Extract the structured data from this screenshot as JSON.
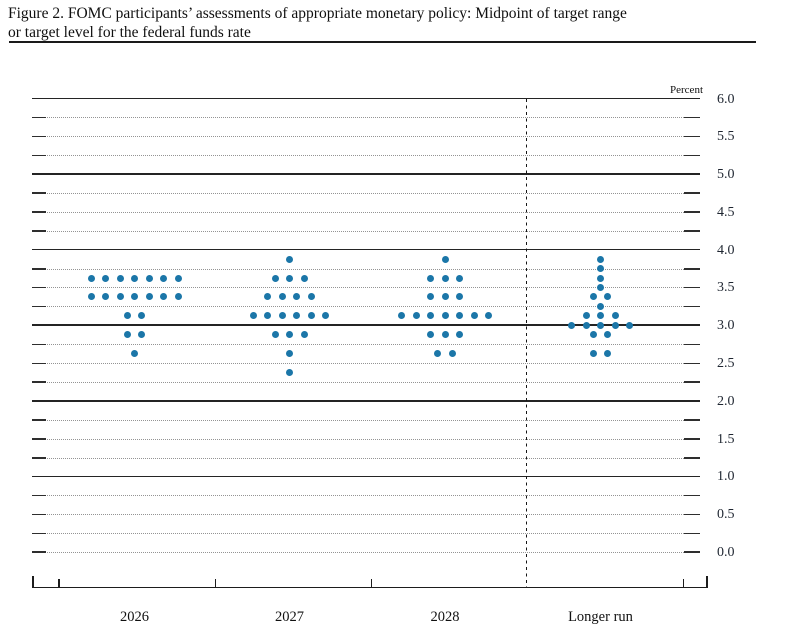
{
  "figure": {
    "title_line1": "Figure 2. FOMC participants’ assessments of appropriate monetary policy: Midpoint of target range",
    "title_line2": "or target level for the federal funds rate"
  },
  "chart_data": {
    "type": "scatter",
    "subtype": "fomc-dot-plot",
    "title": "Figure 2. FOMC participants’ assessments of appropriate monetary policy: Midpoint of target range or target level for the federal funds rate",
    "ylabel": "Percent",
    "ylim": [
      0.0,
      6.0
    ],
    "ytick_label_step": 0.5,
    "gridline_step": 0.25,
    "solid_gridlines": [
      1.0,
      2.0,
      3.0,
      4.0,
      5.0,
      6.0
    ],
    "grid": true,
    "legend_position": "none",
    "categories": [
      "2026",
      "2027",
      "2028",
      "Longer run"
    ],
    "separator_before_category": "Longer run",
    "dot_color": "#1b76a8",
    "participants_per_column": 19,
    "columns": [
      {
        "label": "2026",
        "dots": [
          {
            "rate": 3.625,
            "count": 7
          },
          {
            "rate": 3.375,
            "count": 7
          },
          {
            "rate": 3.125,
            "count": 2
          },
          {
            "rate": 2.875,
            "count": 2
          },
          {
            "rate": 2.625,
            "count": 1
          }
        ]
      },
      {
        "label": "2027",
        "dots": [
          {
            "rate": 3.875,
            "count": 1
          },
          {
            "rate": 3.625,
            "count": 3
          },
          {
            "rate": 3.375,
            "count": 4
          },
          {
            "rate": 3.125,
            "count": 6
          },
          {
            "rate": 2.875,
            "count": 3
          },
          {
            "rate": 2.625,
            "count": 1
          },
          {
            "rate": 2.375,
            "count": 1
          }
        ]
      },
      {
        "label": "2028",
        "dots": [
          {
            "rate": 3.875,
            "count": 1
          },
          {
            "rate": 3.625,
            "count": 3
          },
          {
            "rate": 3.375,
            "count": 3
          },
          {
            "rate": 3.125,
            "count": 7
          },
          {
            "rate": 2.875,
            "count": 3
          },
          {
            "rate": 2.625,
            "count": 2
          }
        ]
      },
      {
        "label": "Longer run",
        "dots": [
          {
            "rate": 3.875,
            "count": 1
          },
          {
            "rate": 3.75,
            "count": 1
          },
          {
            "rate": 3.625,
            "count": 1
          },
          {
            "rate": 3.5,
            "count": 1
          },
          {
            "rate": 3.375,
            "count": 2
          },
          {
            "rate": 3.25,
            "count": 1
          },
          {
            "rate": 3.125,
            "count": 3
          },
          {
            "rate": 3.0,
            "count": 5
          },
          {
            "rate": 2.875,
            "count": 2
          },
          {
            "rate": 2.625,
            "count": 2
          }
        ]
      }
    ]
  }
}
